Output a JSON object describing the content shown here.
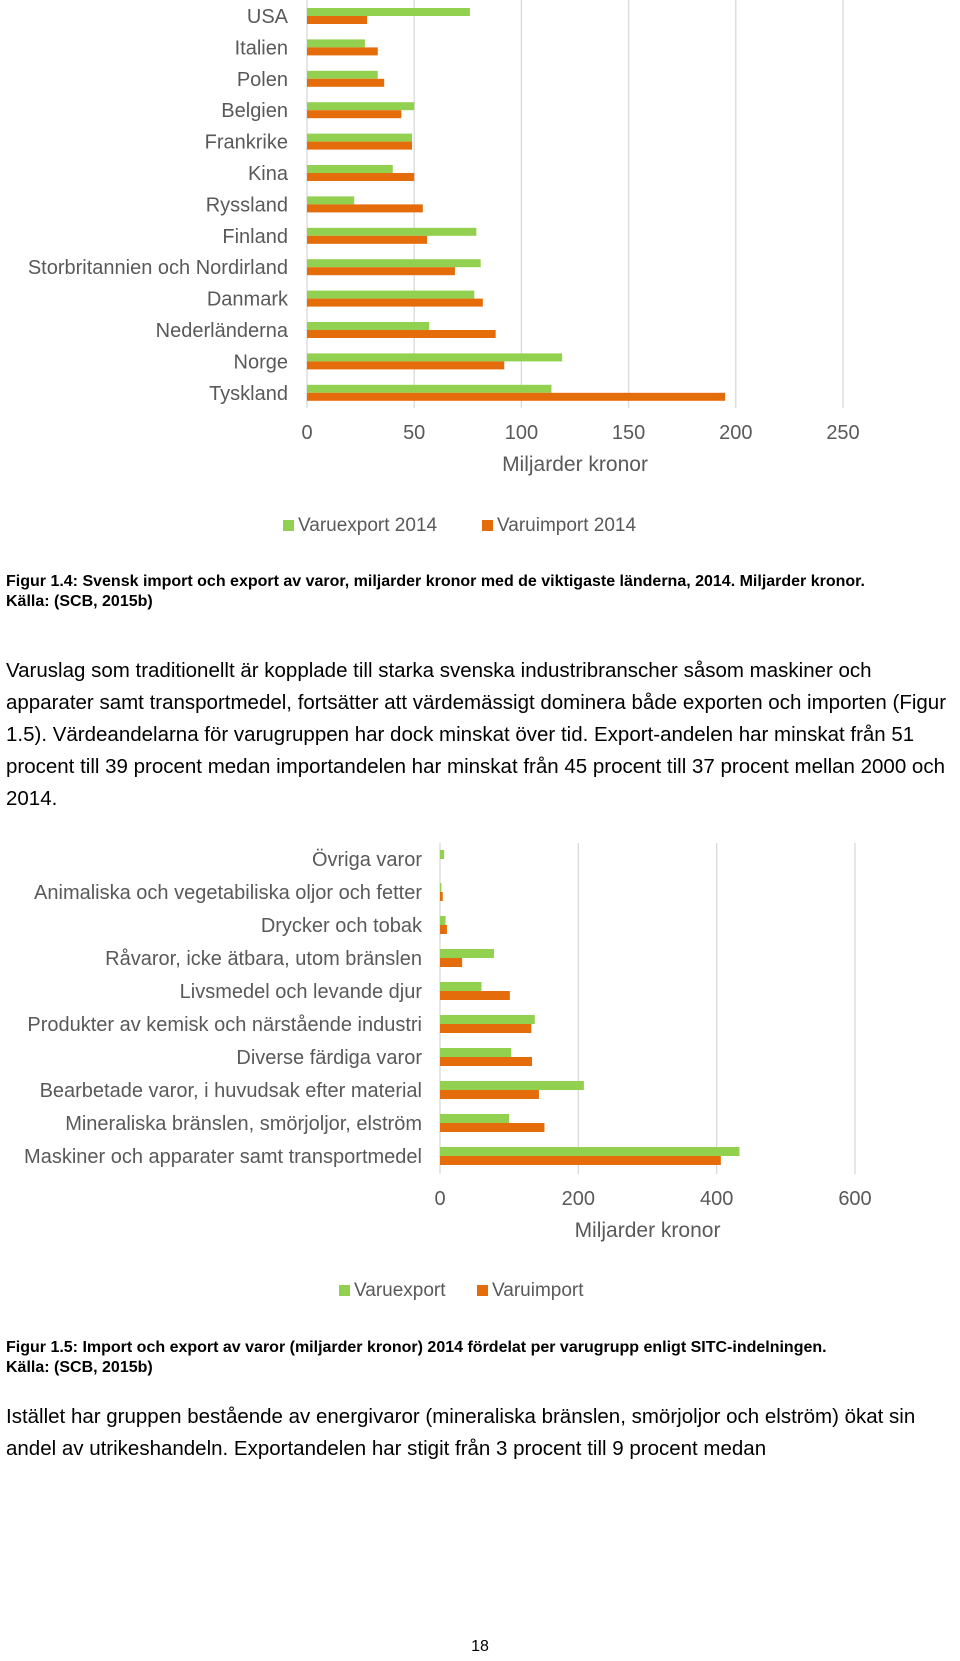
{
  "chart_data": [
    {
      "type": "bar",
      "orientation": "horizontal",
      "categories": [
        "USA",
        "Italien",
        "Polen",
        "Belgien",
        "Frankrike",
        "Kina",
        "Ryssland",
        "Finland",
        "Storbritannien och Nordirland",
        "Danmark",
        "Nederländerna",
        "Norge",
        "Tyskland"
      ],
      "series": [
        {
          "name": "Varuexport 2014",
          "color": "#92d050",
          "values": [
            76,
            27,
            33,
            50,
            49,
            40,
            22,
            79,
            81,
            78,
            57,
            119,
            114
          ]
        },
        {
          "name": "Varuimport 2014",
          "color": "#e46c0a",
          "values": [
            28,
            33,
            36,
            44,
            49,
            50,
            54,
            56,
            69,
            82,
            88,
            92,
            195
          ]
        }
      ],
      "xlim": [
        0,
        250
      ],
      "xticks": [
        "0",
        "50",
        "100",
        "150",
        "200",
        "250"
      ],
      "xlabel": "Miljarder kronor",
      "grid": "vertical",
      "legend": "bottom"
    },
    {
      "type": "bar",
      "orientation": "horizontal",
      "categories": [
        "Övriga varor",
        "Animaliska och vegetabiliska oljor och fetter",
        "Drycker och tobak",
        "Råvaror, icke ätbara, utom bränslen",
        "Livsmedel och levande djur",
        "Produkter av kemisk och närstående industri",
        "Diverse färdiga varor",
        "Bearbetade varor, i huvudsak efter material",
        "Mineraliska bränslen, smörjoljor, elström",
        "Maskiner och apparater samt transportmedel"
      ],
      "series": [
        {
          "name": "Varuexport",
          "color": "#92d050",
          "values": [
            6,
            2,
            8,
            78,
            60,
            137,
            103,
            208,
            100,
            433
          ]
        },
        {
          "name": "Varuimport",
          "color": "#e46c0a",
          "values": [
            0,
            4,
            10,
            32,
            101,
            132,
            133,
            143,
            151,
            406
          ]
        }
      ],
      "xlim": [
        0,
        600
      ],
      "xticks": [
        "0",
        "200",
        "400",
        "600"
      ],
      "xlabel": "Miljarder kronor",
      "grid": "vertical",
      "legend": "bottom"
    }
  ],
  "captions": {
    "fig14": "Figur 1.4: Svensk import och export av varor, miljarder kronor med de viktigaste länderna, 2014. Miljarder kronor.",
    "fig14_source": "Källa: (SCB, 2015b)",
    "fig15": "Figur 1.5: Import och export av varor (miljarder kronor) 2014 fördelat per varugrupp enligt SITC-indelningen.",
    "fig15_source": "Källa: (SCB, 2015b)"
  },
  "paragraphs": {
    "p1": "Varuslag som traditionellt är kopplade till starka svenska industribranscher såsom maskiner och apparater samt transportmedel, fortsätter att värdemässigt dominera både exporten och importen (Figur 1.5). Värdeandelarna för varugruppen har dock minskat över tid. Export-andelen har minskat från 51 procent till 39 procent medan importandelen har minskat från 45 procent till 37 procent mellan 2000 och 2014.",
    "p2": "Istället har gruppen bestående av energivaror (mineraliska bränslen, smörjoljor och elström) ökat sin andel av utrikeshandeln. Exportandelen har stigit från 3 procent till 9 procent medan"
  },
  "page_number": "18"
}
